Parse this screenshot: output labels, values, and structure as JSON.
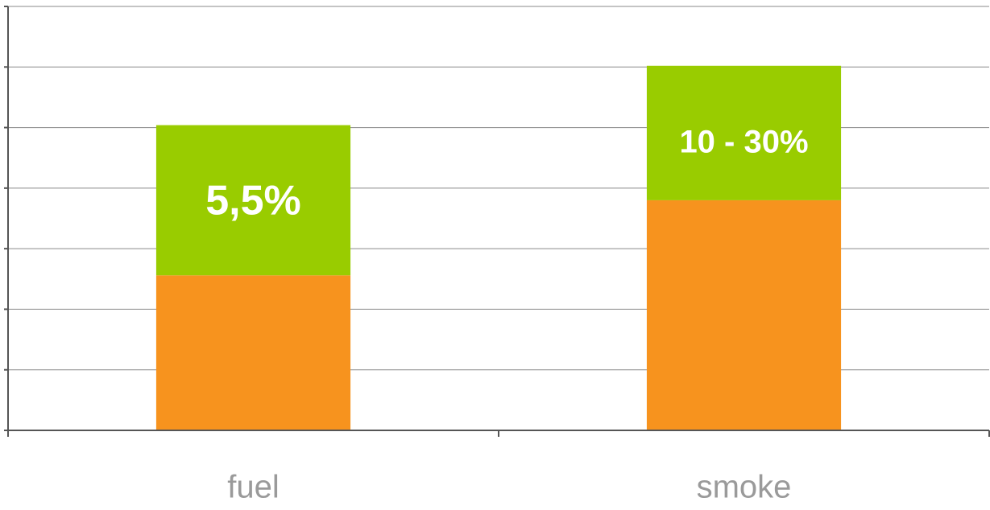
{
  "chart_data": {
    "type": "stacked_bar",
    "categories": [
      "fuel",
      "smoke"
    ],
    "series": [
      {
        "color": "#f7931e",
        "values": [
          2.56,
          3.8
        ]
      },
      {
        "color": "#99cc00",
        "values": [
          2.48,
          2.22
        ],
        "labels": [
          "5,5%",
          "10 - 30%"
        ]
      }
    ],
    "ylim": [
      0,
      7
    ],
    "yticks": [
      0,
      1,
      2,
      3,
      4,
      5,
      6,
      7
    ],
    "grid": true
  }
}
